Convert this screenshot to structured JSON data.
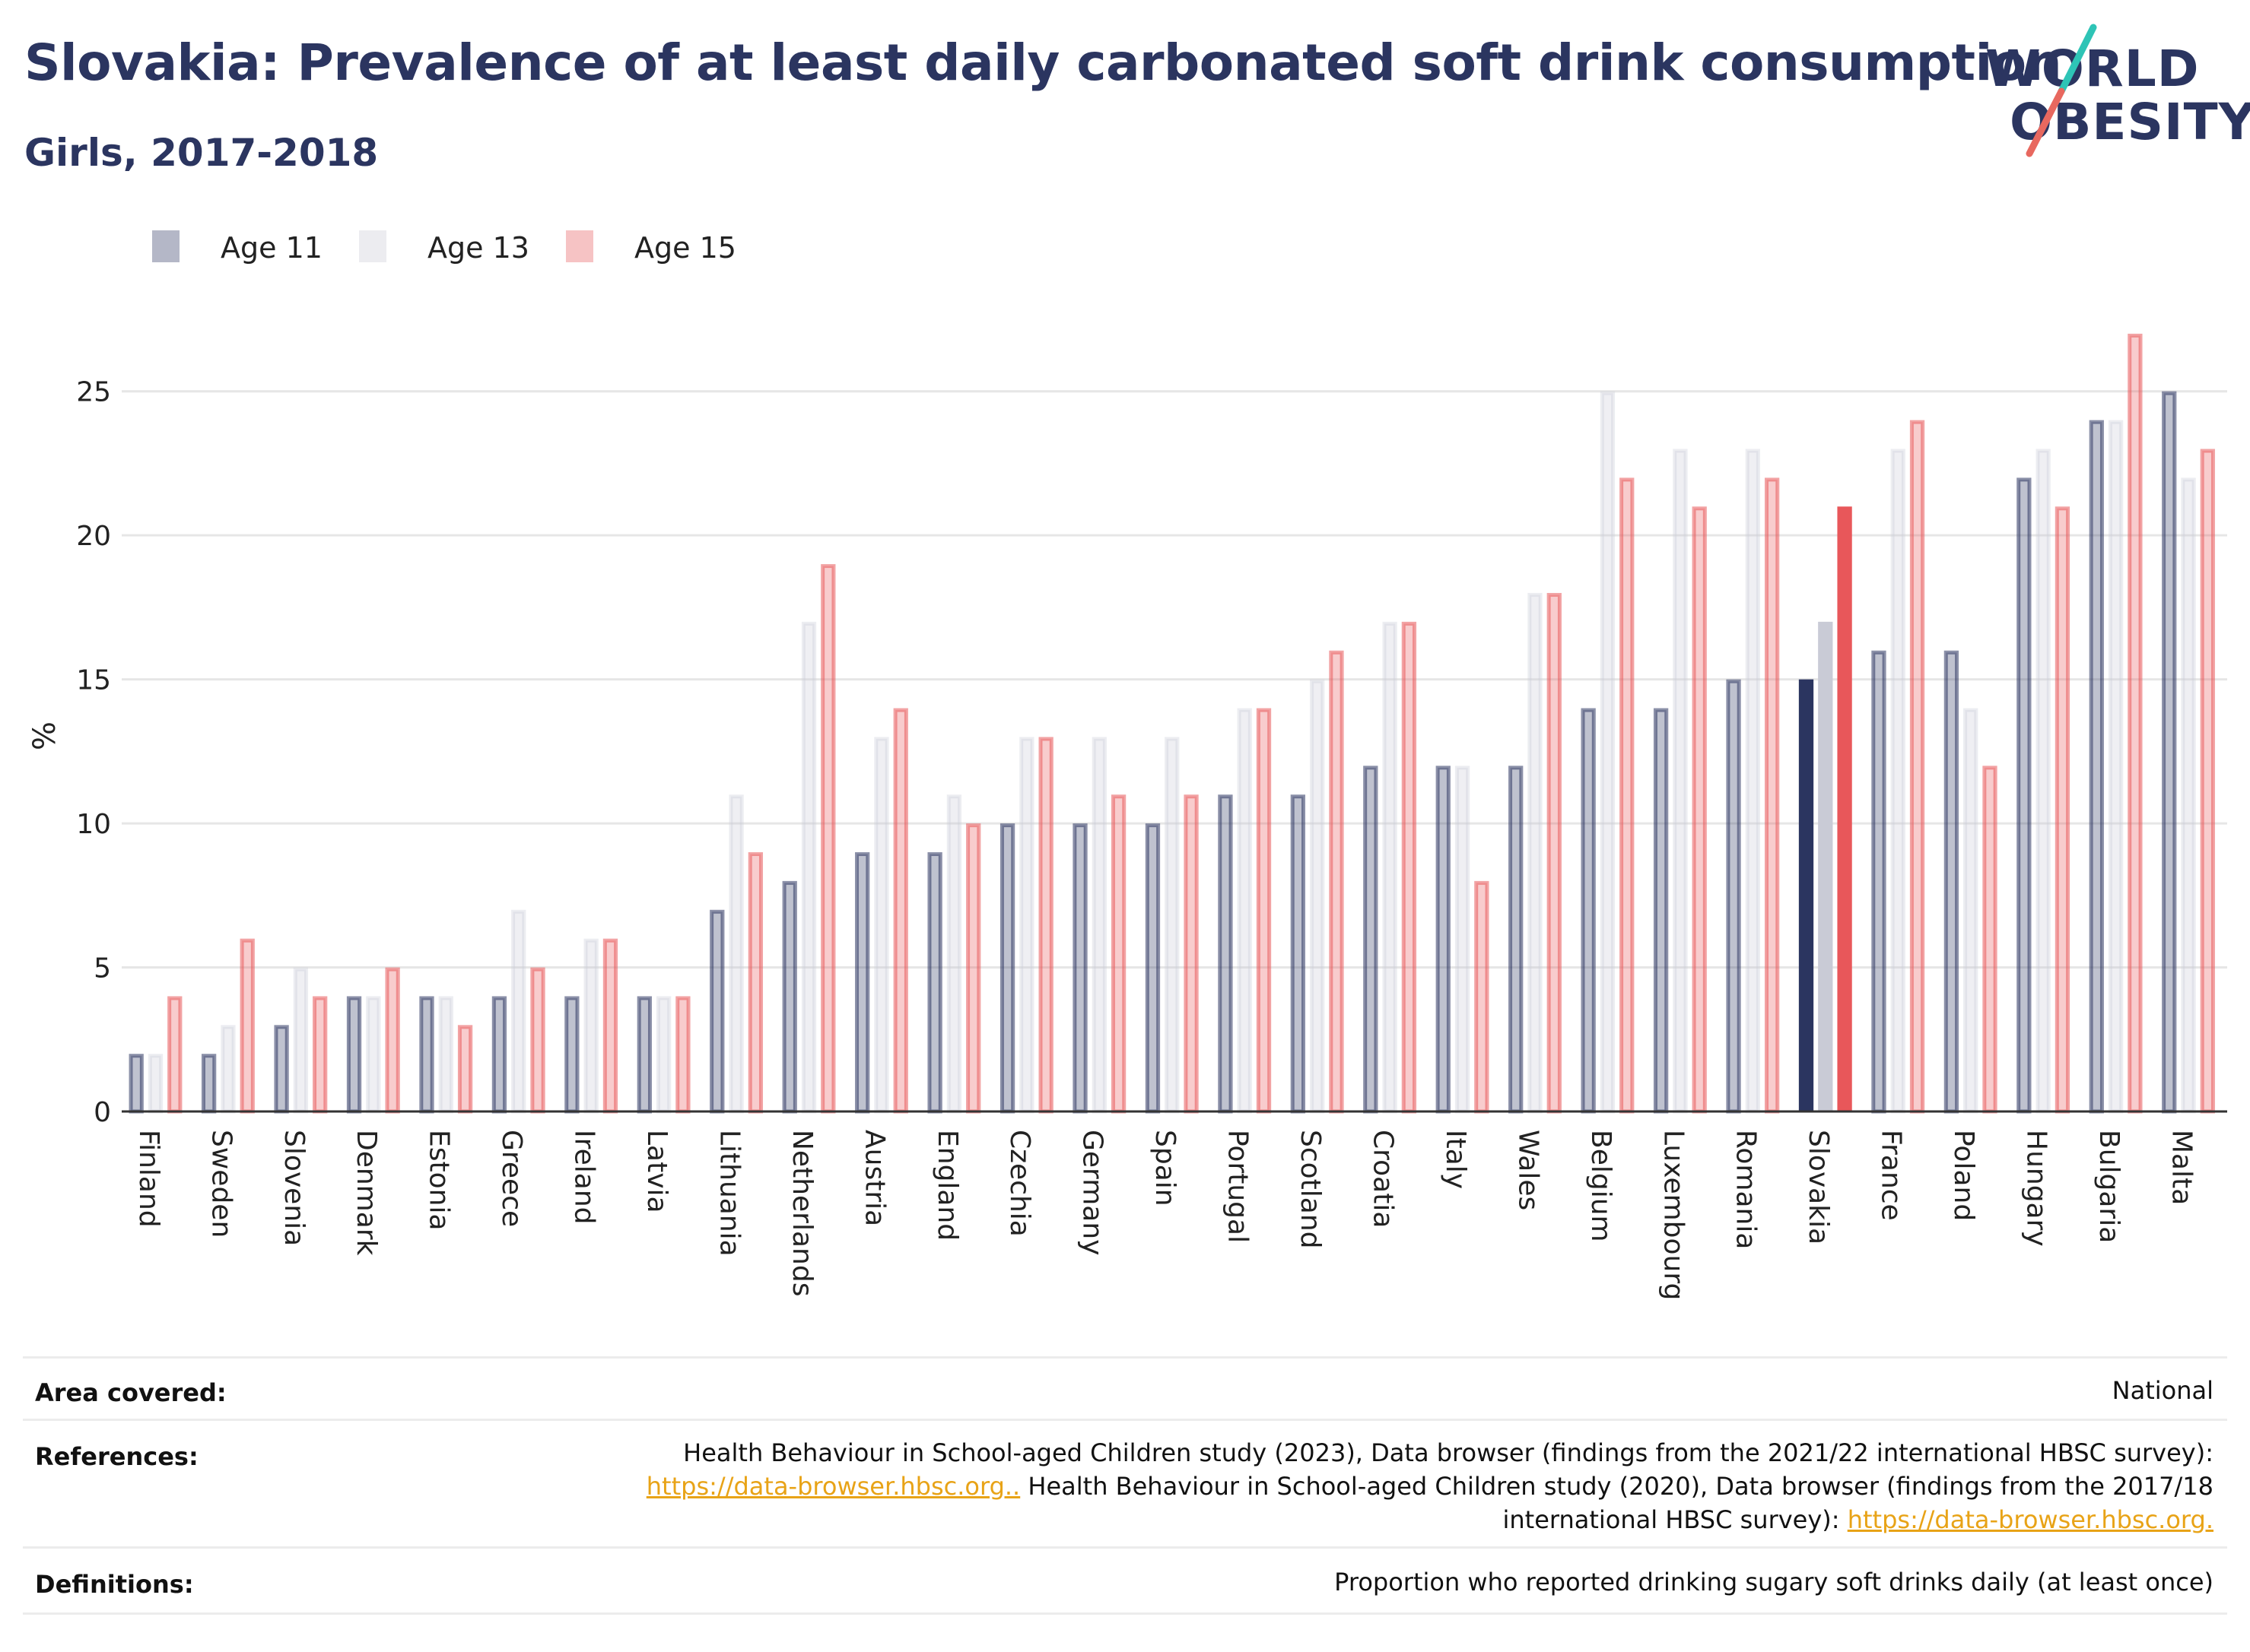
{
  "header": {
    "title": "Slovakia: Prevalence of at least daily carbonated soft drink consumption",
    "subtitle": "Girls, 2017-2018"
  },
  "logo": {
    "line1": "WORLD",
    "line2": "OBESITY",
    "slash_colors": [
      "#2ec4b6",
      "#e8685f"
    ]
  },
  "colors": {
    "age11": "#2b3560",
    "age13": "#c9cbd6",
    "age15": "#e8575a"
  },
  "chart_data": {
    "type": "bar",
    "ylabel": "%",
    "ylim": [
      0,
      27.5
    ],
    "yticks": [
      0,
      5,
      10,
      15,
      20,
      25
    ],
    "grid": true,
    "legend_position": "top-left",
    "highlight_category": "Slovakia",
    "categories": [
      "Finland",
      "Sweden",
      "Slovenia",
      "Denmark",
      "Estonia",
      "Greece",
      "Ireland",
      "Latvia",
      "Lithuania",
      "Netherlands",
      "Austria",
      "England",
      "Czechia",
      "Germany",
      "Spain",
      "Portugal",
      "Scotland",
      "Croatia",
      "Italy",
      "Wales",
      "Belgium",
      "Luxembourg",
      "Romania",
      "Slovakia",
      "France",
      "Poland",
      "Hungary",
      "Bulgaria",
      "Malta"
    ],
    "series": [
      {
        "name": "Age 11",
        "values": [
          2,
          2,
          3,
          4,
          4,
          4,
          4,
          4,
          7,
          8,
          9,
          9,
          10,
          10,
          10,
          11,
          11,
          12,
          12,
          12,
          14,
          14,
          15,
          15,
          16,
          16,
          22,
          24,
          25
        ]
      },
      {
        "name": "Age 13",
        "values": [
          2,
          3,
          5,
          4,
          4,
          7,
          6,
          4,
          11,
          17,
          13,
          11,
          13,
          13,
          13,
          14,
          15,
          17,
          12,
          18,
          25,
          23,
          23,
          17,
          23,
          14,
          23,
          24,
          22
        ]
      },
      {
        "name": "Age 15",
        "values": [
          4,
          6,
          4,
          5,
          3,
          5,
          6,
          4,
          9,
          19,
          14,
          10,
          13,
          11,
          11,
          14,
          16,
          17,
          8,
          18,
          22,
          21,
          22,
          21,
          24,
          12,
          21,
          27,
          23
        ]
      }
    ]
  },
  "info": {
    "area": {
      "label": "Area covered:",
      "value": "National"
    },
    "references": {
      "label": "References:",
      "line1": "Health Behaviour in School-aged Children study (2023), Data browser (findings from the 2021/22 international HBSC survey):",
      "link1": "https://data-browser.hbsc.org..",
      "line2": " Health Behaviour in School-aged Children study (2020), Data browser (findings from the 2017/18",
      "line3": "international HBSC survey): ",
      "link2": "https://data-browser.hbsc.org."
    },
    "definitions": {
      "label": "Definitions:",
      "value": "Proportion who reported drinking sugary soft drinks daily (at least once)"
    }
  }
}
